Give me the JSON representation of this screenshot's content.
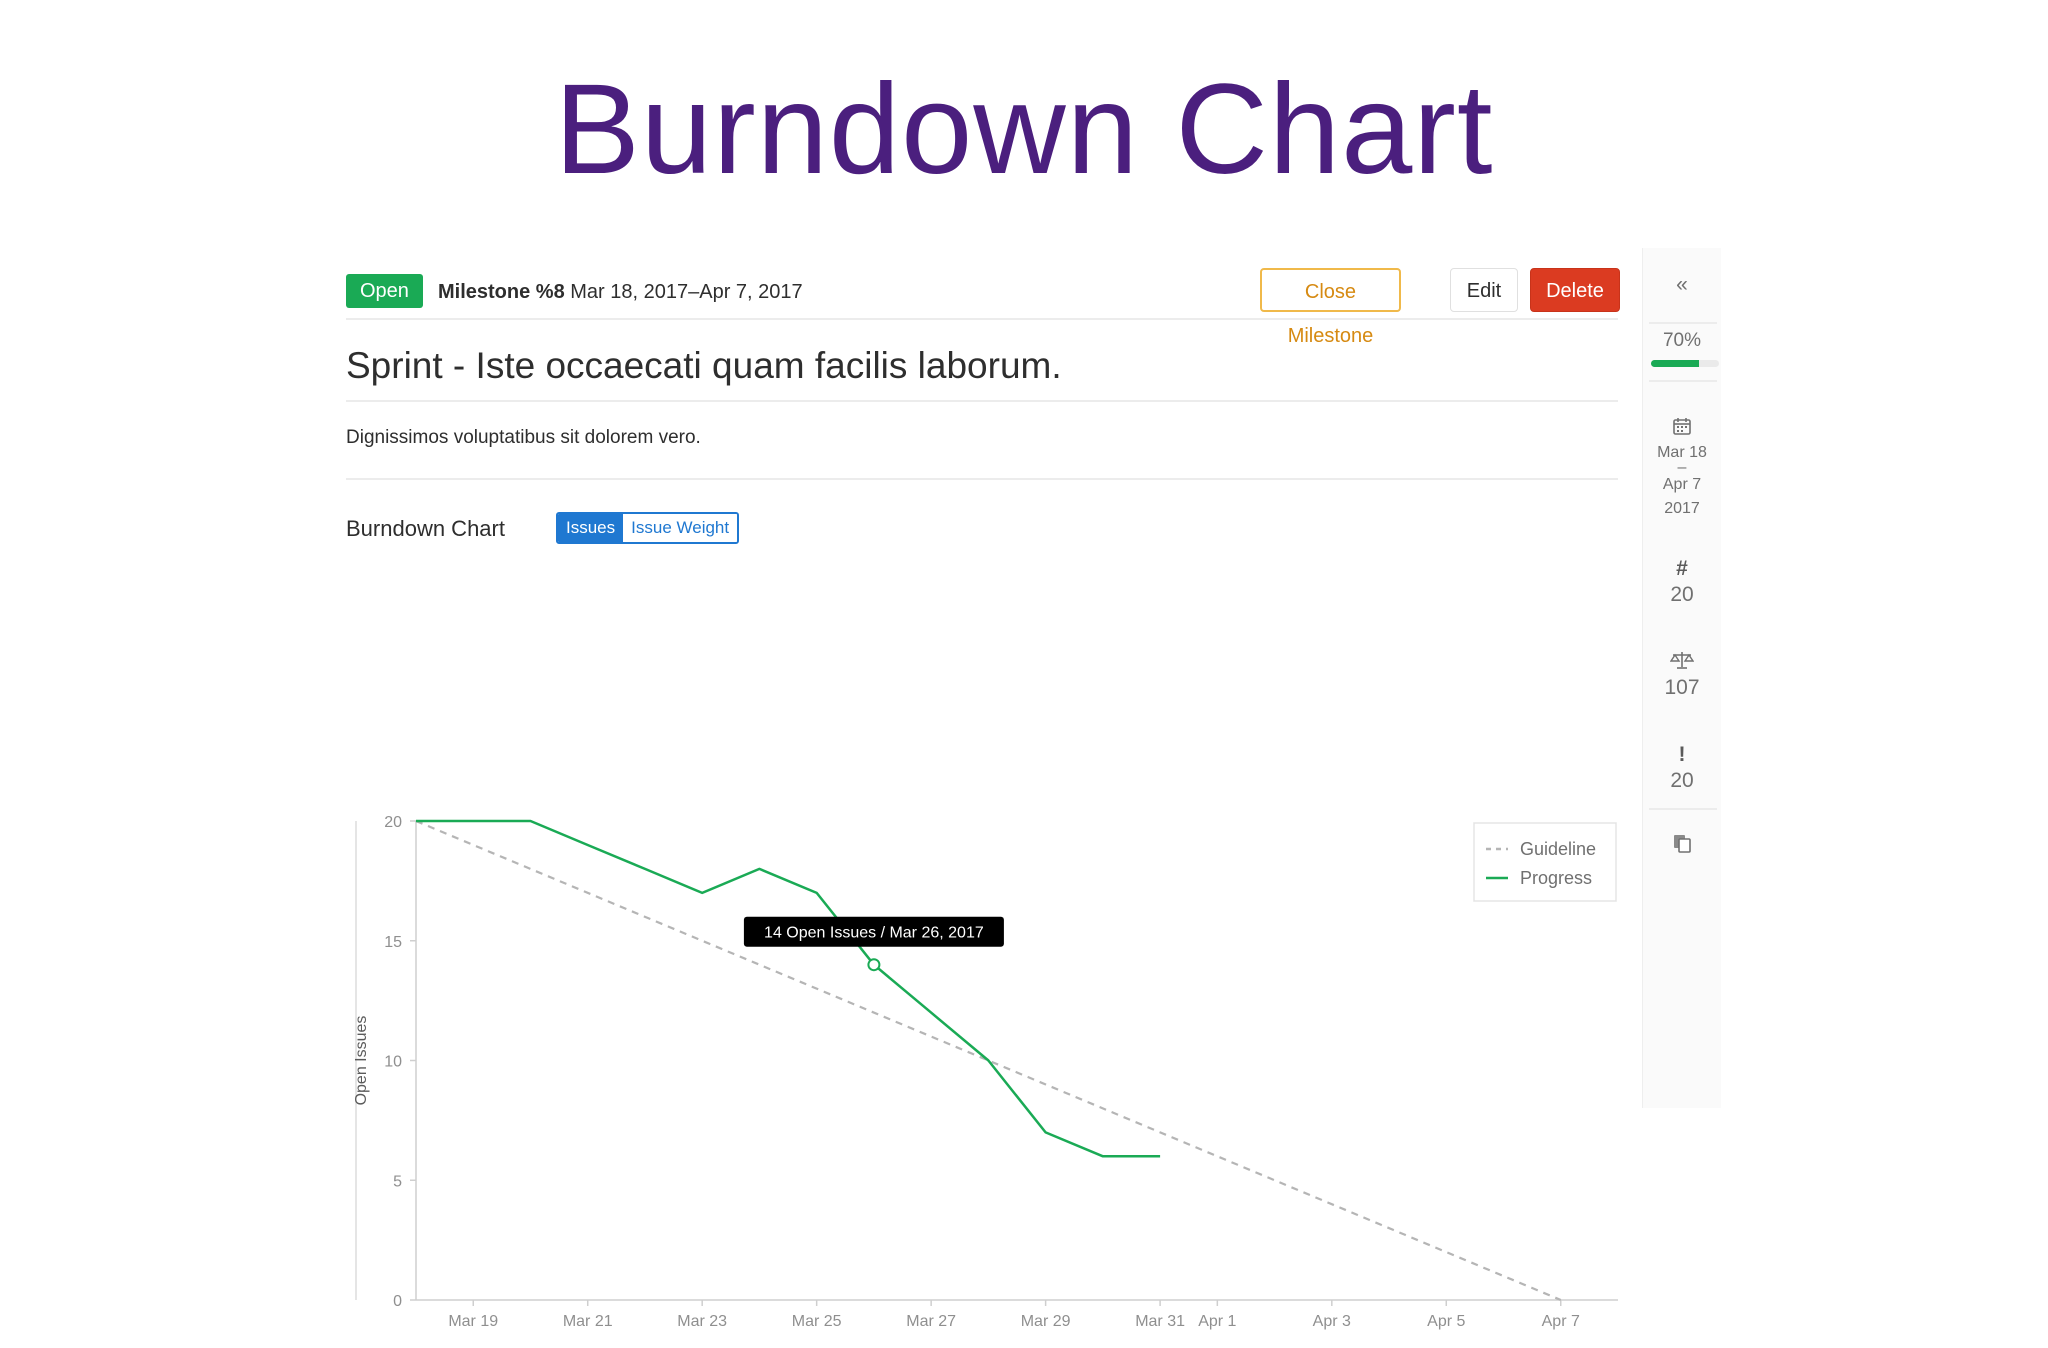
{
  "slide": {
    "title": "Burndown Chart"
  },
  "milestone": {
    "status": "Open",
    "label": "Milestone %8",
    "dates": "Mar 18, 2017–Apr 7, 2017",
    "buttons": {
      "close": "Close Milestone",
      "edit": "Edit",
      "delete": "Delete"
    },
    "title": "Sprint - Iste occaecati quam facilis laborum.",
    "description": "Dignissimos voluptatibus sit dolorem vero."
  },
  "chart_section": {
    "heading": "Burndown Chart",
    "toggle": {
      "issues": "Issues",
      "weight": "Issue Weight"
    }
  },
  "sidebar": {
    "collapse_glyph": "«",
    "progress_label": "70%",
    "progress": 0.7,
    "date_start": "Mar 18",
    "date_sep": "–",
    "date_end": "Apr 7",
    "date_year": "2017",
    "issues_glyph": "#",
    "issues_count": "20",
    "weight_count": "107",
    "priority_glyph": "!",
    "priority_count": "20",
    "icons": {
      "collapse": "double-chevron-left-icon",
      "calendar": "calendar-icon",
      "hash": "hash-icon",
      "scale": "scale-icon",
      "exclamation": "exclamation-icon",
      "copy": "copy-icon"
    }
  },
  "chart_data": {
    "type": "line",
    "ylabel": "Open Issues",
    "ylim": [
      0,
      20
    ],
    "yticks": [
      0,
      5,
      10,
      15,
      20
    ],
    "xlim": [
      "2017-03-18",
      "2017-04-08"
    ],
    "xticks": [
      {
        "date": "2017-03-19",
        "label": "Mar 19"
      },
      {
        "date": "2017-03-21",
        "label": "Mar 21"
      },
      {
        "date": "2017-03-23",
        "label": "Mar 23"
      },
      {
        "date": "2017-03-25",
        "label": "Mar 25"
      },
      {
        "date": "2017-03-27",
        "label": "Mar 27"
      },
      {
        "date": "2017-03-29",
        "label": "Mar 29"
      },
      {
        "date": "2017-03-31",
        "label": "Mar 31"
      },
      {
        "date": "2017-04-01",
        "label": "Apr 1"
      },
      {
        "date": "2017-04-03",
        "label": "Apr 3"
      },
      {
        "date": "2017-04-05",
        "label": "Apr 5"
      },
      {
        "date": "2017-04-07",
        "label": "Apr 7"
      }
    ],
    "series": [
      {
        "name": "Guideline",
        "style": "dashed",
        "color": "#b5b5b5",
        "points": [
          {
            "x": "2017-03-18",
            "y": 20
          },
          {
            "x": "2017-04-07",
            "y": 0
          }
        ]
      },
      {
        "name": "Progress",
        "style": "solid",
        "color": "#1aaa55",
        "points": [
          {
            "x": "2017-03-18",
            "y": 20
          },
          {
            "x": "2017-03-20",
            "y": 20
          },
          {
            "x": "2017-03-21",
            "y": 19
          },
          {
            "x": "2017-03-22",
            "y": 18
          },
          {
            "x": "2017-03-23",
            "y": 17
          },
          {
            "x": "2017-03-24",
            "y": 18
          },
          {
            "x": "2017-03-25",
            "y": 17
          },
          {
            "x": "2017-03-26",
            "y": 14
          },
          {
            "x": "2017-03-27",
            "y": 12
          },
          {
            "x": "2017-03-28",
            "y": 10
          },
          {
            "x": "2017-03-29",
            "y": 7
          },
          {
            "x": "2017-03-30",
            "y": 6
          },
          {
            "x": "2017-03-31",
            "y": 6
          }
        ]
      }
    ],
    "legend": {
      "position": "top-right"
    },
    "tooltip": {
      "text": "14 Open Issues / Mar 26, 2017",
      "x": "2017-03-26",
      "y": 14
    },
    "grid": false
  }
}
